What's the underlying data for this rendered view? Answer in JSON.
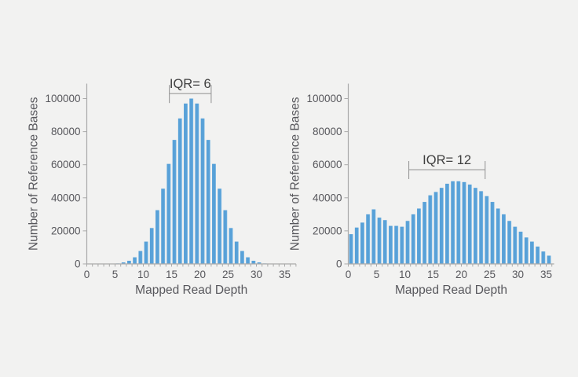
{
  "figure": {
    "background": "#f2f2f1",
    "description": "Two mapped read depth histograms"
  },
  "styles": {
    "bar_color": "#58a1d8",
    "bar_highlight": "#8ec5e9",
    "axis_color": "#aaaaaa",
    "tick_color": "#aaaaaa",
    "text_color": "#57575c",
    "annotation_line_color": "#999999",
    "annotation_text_color": "#3f3f3f"
  },
  "chart_data": [
    {
      "type": "bar",
      "name": "left",
      "title": "",
      "xlabel": "Mapped Read Depth",
      "ylabel": "Number of Reference Bases",
      "x": [
        0,
        1,
        2,
        3,
        4,
        5,
        6,
        7,
        8,
        9,
        10,
        11,
        12,
        13,
        14,
        15,
        16,
        17,
        18,
        19,
        20,
        21,
        22,
        23,
        24,
        25,
        26,
        27,
        28,
        29,
        30,
        31,
        32,
        33,
        34,
        35,
        36
      ],
      "values": [
        0,
        0,
        0,
        0,
        0,
        300,
        900,
        1900,
        4000,
        7800,
        13500,
        21700,
        32500,
        45500,
        60500,
        75000,
        88000,
        97000,
        100000,
        97000,
        88000,
        75000,
        60500,
        45500,
        32500,
        21700,
        13500,
        7800,
        4000,
        1900,
        900,
        300,
        100,
        0,
        0,
        0,
        0
      ],
      "xticks": [
        0,
        5,
        10,
        15,
        20,
        25,
        30,
        35
      ],
      "yticks": [
        0,
        20000,
        40000,
        60000,
        80000,
        100000
      ],
      "xlim": [
        0,
        37
      ],
      "ylim": [
        0,
        109000
      ],
      "grid": false,
      "annotation": {
        "label": "IQR= 6",
        "x_start": 14.6,
        "x_end": 22.0,
        "y_value": 103000
      }
    },
    {
      "type": "bar",
      "name": "right",
      "title": "",
      "xlabel": "Mapped Read Depth",
      "ylabel": "Number of Reference Bases",
      "x": [
        0,
        1,
        2,
        3,
        4,
        5,
        6,
        7,
        8,
        9,
        10,
        11,
        12,
        13,
        14,
        15,
        16,
        17,
        18,
        19,
        20,
        21,
        22,
        23,
        24,
        25,
        26,
        27,
        28,
        29,
        30,
        31,
        32,
        33,
        34,
        35
      ],
      "values": [
        18000,
        22000,
        25000,
        30000,
        33000,
        28000,
        26500,
        23000,
        23000,
        22500,
        26000,
        30000,
        33500,
        37500,
        41500,
        43500,
        46000,
        48500,
        50000,
        50000,
        49500,
        48000,
        46000,
        44000,
        41000,
        37500,
        33500,
        30000,
        26000,
        22500,
        19500,
        16000,
        13500,
        10500,
        7500,
        5000
      ],
      "xticks": [
        0,
        5,
        10,
        15,
        20,
        25,
        30,
        35
      ],
      "yticks": [
        0,
        20000,
        40000,
        60000,
        80000,
        100000
      ],
      "xlim": [
        0,
        36.4
      ],
      "ylim": [
        0,
        109000
      ],
      "grid": false,
      "annotation": {
        "label": "IQR= 12",
        "x_start": 10.7,
        "x_end": 24.2,
        "y_value": 57000
      }
    }
  ]
}
